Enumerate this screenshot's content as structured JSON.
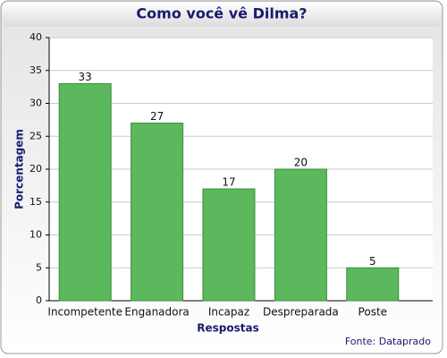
{
  "chart_data": {
    "type": "bar",
    "title": "Como você vê Dilma?",
    "x_label": "Respostas",
    "y_label": "Porcentagem",
    "source": "Fonte: Dataprado",
    "categories": [
      "Incompetente",
      "Enganadora",
      "Incapaz",
      "Despreparada",
      "Poste"
    ],
    "values": [
      33,
      27,
      17,
      20,
      5
    ],
    "color": "#5cb85c",
    "ylim": [
      0,
      40
    ],
    "yticks": [
      0,
      5,
      10,
      15,
      20,
      25,
      30,
      35,
      40
    ],
    "grid": true
  }
}
